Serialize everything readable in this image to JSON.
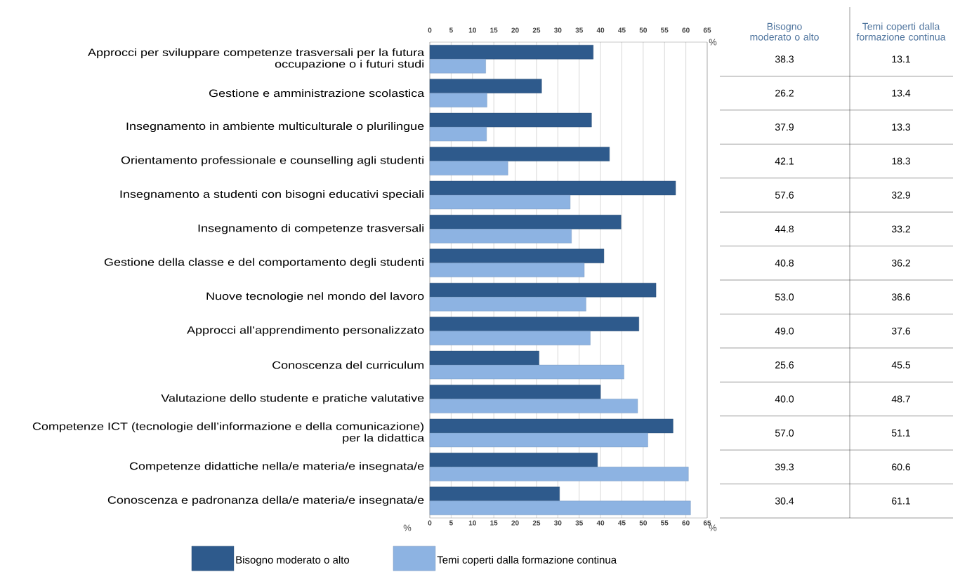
{
  "chart_data": {
    "type": "bar",
    "orientation": "horizontal",
    "categories": [
      "Approcci per sviluppare competenze trasversali per la futura occupazione o i futuri studi",
      "Gestione e amministrazione scolastica",
      "Insegnamento in ambiente multiculturale o plurilingue",
      "Orientamento professionale e counselling agli studenti",
      "Insegnamento a studenti con bisogni educativi speciali",
      "Insegnamento di competenze trasversali",
      "Gestione della classe e del comportamento degli studenti",
      "Nuove tecnologie nel mondo del lavoro",
      "Approcci all’apprendimento personalizzato",
      "Conoscenza del curriculum",
      "Valutazione dello studente e pratiche valutative",
      "Competenze ICT (tecnologie dell’informazione e della comunicazione) per la didattica",
      "Competenze didattiche nella/e materia/e insegnata/e",
      "Conoscenza e padronanza della/e materia/e insegnata/e"
    ],
    "series": [
      {
        "name": "Bisogno moderato o alto",
        "color": "#2e5a8c",
        "values": [
          38.3,
          26.2,
          37.9,
          42.1,
          57.6,
          44.8,
          40.8,
          53.0,
          49.0,
          25.6,
          40.0,
          57.0,
          39.3,
          30.4
        ],
        "value_labels": [
          "38.3",
          "26.2",
          "37.9",
          "42.1",
          "57.6",
          "44.8",
          "40.8",
          "53.0",
          "49.0",
          "25.6",
          "40.0",
          "57.0",
          "39.3",
          "30.4"
        ]
      },
      {
        "name": "Temi coperti dalla formazione continua",
        "color": "#8db3e2",
        "values": [
          13.1,
          13.4,
          13.3,
          18.3,
          32.9,
          33.2,
          36.2,
          36.6,
          37.6,
          45.5,
          48.7,
          51.1,
          60.6,
          61.1
        ],
        "value_labels": [
          "13.1",
          "13.4",
          "13.3",
          "18.3",
          "32.9",
          "33.2",
          "36.2",
          "36.6",
          "37.6",
          "45.5",
          "48.7",
          "51.1",
          "60.6",
          "61.1"
        ]
      }
    ],
    "xlabel": "%",
    "x2label": "%",
    "annotations": [
      "%"
    ],
    "x2lim": [
      0,
      65
    ],
    "x2ticks": [
      0,
      5,
      10,
      15,
      20,
      25,
      30,
      35,
      40,
      45,
      50,
      55,
      60,
      65
    ],
    "xlim": [
      0,
      65
    ],
    "xticks": [
      0,
      5,
      10,
      15,
      20,
      25,
      30,
      35,
      40,
      45,
      50,
      55,
      60,
      65
    ],
    "grid": "x",
    "legend": "bottom"
  }
}
